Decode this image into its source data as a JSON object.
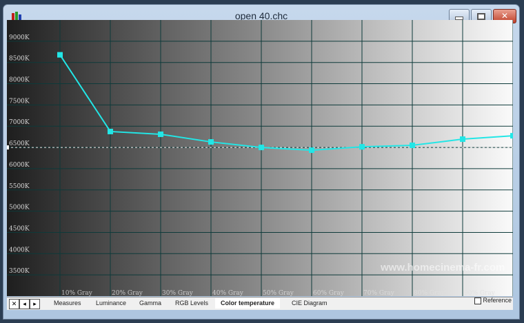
{
  "window": {
    "title": "open 40.chc"
  },
  "tabs": [
    "Measures",
    "Luminance",
    "Gamma",
    "RGB Levels",
    "Color temperature",
    "CIE Diagram"
  ],
  "active_tab": "Color temperature",
  "nav": {
    "close": "✕",
    "prev": "◂",
    "next": "▸"
  },
  "reference_label": "Reference",
  "watermark": "www.homecinema-fr.com",
  "colors": {
    "series": "#22e6e6",
    "grid": "#0d3a3a",
    "reference": "#ffffff"
  },
  "chart_data": {
    "type": "line",
    "x": [
      10,
      20,
      30,
      40,
      50,
      60,
      70,
      80,
      90,
      100
    ],
    "xticklabels": [
      "10% Gray",
      "20% Gray",
      "30% Gray",
      "40% Gray",
      "50% Gray",
      "60% Gray",
      "70% Gray",
      "80% Gray",
      "90% Gray",
      ""
    ],
    "series": [
      {
        "values": [
          8680,
          6875,
          6810,
          6630,
          6500,
          6435,
          6515,
          6550,
          6695,
          6775
        ]
      }
    ],
    "reference_value": 6500,
    "yticklabels": [
      "9000K",
      "8500K",
      "8000K",
      "7500K",
      "7000K",
      "6500K",
      "6000K",
      "5500K",
      "5000K",
      "4500K",
      "4000K",
      "3500K"
    ],
    "yticks": [
      9000,
      8500,
      8000,
      7500,
      7000,
      6500,
      6000,
      5500,
      5000,
      4500,
      4000,
      3500
    ],
    "ylim": [
      3000,
      9500
    ],
    "xlim": [
      0,
      100
    ],
    "grid": true
  }
}
